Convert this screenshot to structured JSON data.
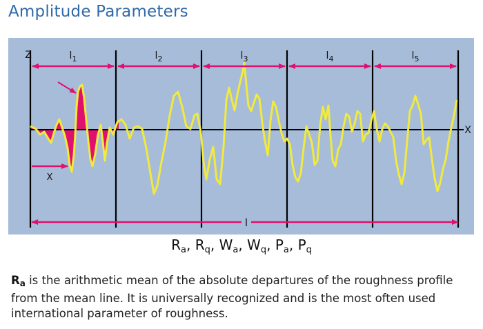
{
  "title": "Amplitude Parameters",
  "diagram": {
    "axis_z": "Z",
    "axis_x": "X",
    "x_marker": "X",
    "segments": [
      {
        "label": "l",
        "sub": "1"
      },
      {
        "label": "l",
        "sub": "2"
      },
      {
        "label": "l",
        "sub": "3"
      },
      {
        "label": "l",
        "sub": "4"
      },
      {
        "label": "l",
        "sub": "5"
      }
    ],
    "total_length": "l",
    "colors": {
      "background": "#a6bcd9",
      "profile": "#f2ea3c",
      "fill": "#e0106e",
      "arrows": "#e0106e",
      "lines": "#000000"
    }
  },
  "parameters": [
    {
      "base": "R",
      "sub": "a"
    },
    {
      "base": "R",
      "sub": "q"
    },
    {
      "base": "W",
      "sub": "a"
    },
    {
      "base": "W",
      "sub": "q"
    },
    {
      "base": "P",
      "sub": "a"
    },
    {
      "base": "P",
      "sub": "q"
    }
  ],
  "parameter_separator": ", ",
  "description": {
    "symbol_base": "R",
    "symbol_sub": "a",
    "text": " is the arithmetic mean of the absolute departures of the roughness profile from the mean line. It is universally recognized and is the most often used international parameter of roughness."
  }
}
